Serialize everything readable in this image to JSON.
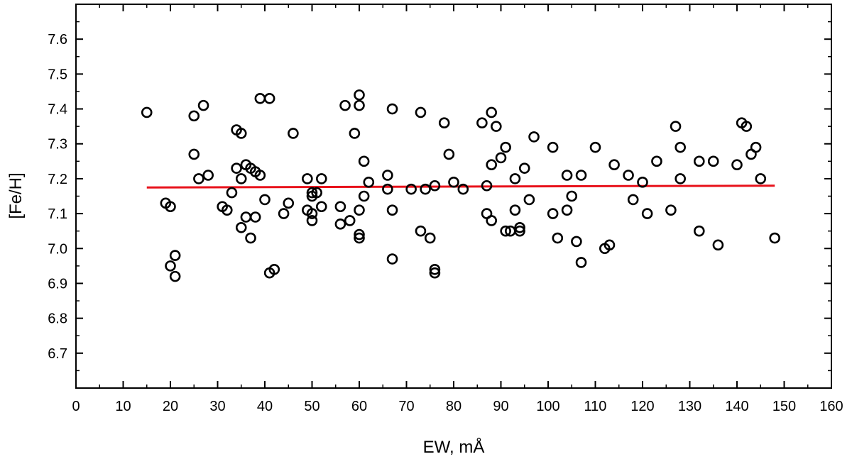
{
  "chart_data": {
    "type": "scatter",
    "title": "",
    "xlabel": "EW,   mÅ",
    "ylabel": "[Fe/H]",
    "xlim": [
      0,
      160
    ],
    "ylim": [
      6.6,
      7.7
    ],
    "x_ticks": [
      0,
      10,
      20,
      30,
      40,
      50,
      60,
      70,
      80,
      90,
      100,
      110,
      120,
      130,
      140,
      150,
      160
    ],
    "y_ticks": [
      6.7,
      6.8,
      6.9,
      7.0,
      7.1,
      7.2,
      7.3,
      7.4,
      7.5,
      7.6
    ],
    "y_tick_labels": [
      "6.7",
      "6.8",
      "6.9",
      "7.0",
      "7.1",
      "7.2",
      "7.3",
      "7.4",
      "7.5",
      "7.6"
    ],
    "grid": false,
    "marker_color": "#000000",
    "fit_line_color": "#e8121b",
    "points": [
      [
        15,
        7.39
      ],
      [
        19,
        7.13
      ],
      [
        20,
        7.12
      ],
      [
        20,
        6.95
      ],
      [
        21,
        6.98
      ],
      [
        21,
        6.92
      ],
      [
        25,
        7.38
      ],
      [
        25,
        7.27
      ],
      [
        26,
        7.2
      ],
      [
        27,
        7.41
      ],
      [
        28,
        7.21
      ],
      [
        31,
        7.12
      ],
      [
        32,
        7.11
      ],
      [
        33,
        7.16
      ],
      [
        34,
        7.34
      ],
      [
        34,
        7.23
      ],
      [
        35,
        7.33
      ],
      [
        35,
        7.2
      ],
      [
        35,
        7.06
      ],
      [
        36,
        7.24
      ],
      [
        36,
        7.09
      ],
      [
        37,
        7.23
      ],
      [
        37,
        7.03
      ],
      [
        38,
        7.22
      ],
      [
        38,
        7.09
      ],
      [
        39,
        7.43
      ],
      [
        39,
        7.21
      ],
      [
        40,
        7.14
      ],
      [
        41,
        7.43
      ],
      [
        41,
        6.93
      ],
      [
        42,
        6.94
      ],
      [
        44,
        7.1
      ],
      [
        45,
        7.13
      ],
      [
        46,
        7.33
      ],
      [
        49,
        7.2
      ],
      [
        49,
        7.11
      ],
      [
        50,
        7.16
      ],
      [
        50,
        7.15
      ],
      [
        50,
        7.1
      ],
      [
        50,
        7.08
      ],
      [
        51,
        7.16
      ],
      [
        52,
        7.2
      ],
      [
        52,
        7.12
      ],
      [
        56,
        7.12
      ],
      [
        56,
        7.07
      ],
      [
        57,
        7.41
      ],
      [
        58,
        7.08
      ],
      [
        59,
        7.33
      ],
      [
        60,
        7.44
      ],
      [
        60,
        7.41
      ],
      [
        60,
        7.11
      ],
      [
        60,
        7.04
      ],
      [
        60,
        7.03
      ],
      [
        61,
        7.25
      ],
      [
        61,
        7.15
      ],
      [
        62,
        7.19
      ],
      [
        66,
        7.21
      ],
      [
        66,
        7.17
      ],
      [
        67,
        7.4
      ],
      [
        67,
        7.11
      ],
      [
        67,
        6.97
      ],
      [
        71,
        7.17
      ],
      [
        73,
        7.39
      ],
      [
        73,
        7.05
      ],
      [
        74,
        7.17
      ],
      [
        75,
        7.03
      ],
      [
        76,
        7.18
      ],
      [
        76,
        6.94
      ],
      [
        76,
        6.93
      ],
      [
        78,
        7.36
      ],
      [
        79,
        7.27
      ],
      [
        80,
        7.19
      ],
      [
        82,
        7.17
      ],
      [
        86,
        7.36
      ],
      [
        87,
        7.18
      ],
      [
        87,
        7.1
      ],
      [
        88,
        7.39
      ],
      [
        88,
        7.24
      ],
      [
        88,
        7.08
      ],
      [
        89,
        7.35
      ],
      [
        90,
        7.26
      ],
      [
        91,
        7.29
      ],
      [
        91,
        7.05
      ],
      [
        92,
        7.05
      ],
      [
        93,
        7.2
      ],
      [
        93,
        7.11
      ],
      [
        94,
        7.06
      ],
      [
        94,
        7.05
      ],
      [
        95,
        7.23
      ],
      [
        96,
        7.14
      ],
      [
        97,
        7.32
      ],
      [
        101,
        7.29
      ],
      [
        101,
        7.1
      ],
      [
        102,
        7.03
      ],
      [
        104,
        7.21
      ],
      [
        104,
        7.11
      ],
      [
        105,
        7.15
      ],
      [
        106,
        7.02
      ],
      [
        107,
        7.21
      ],
      [
        107,
        6.96
      ],
      [
        110,
        7.29
      ],
      [
        112,
        7.0
      ],
      [
        113,
        7.01
      ],
      [
        114,
        7.24
      ],
      [
        117,
        7.21
      ],
      [
        118,
        7.14
      ],
      [
        120,
        7.19
      ],
      [
        121,
        7.1
      ],
      [
        123,
        7.25
      ],
      [
        126,
        7.11
      ],
      [
        127,
        7.35
      ],
      [
        128,
        7.29
      ],
      [
        128,
        7.2
      ],
      [
        132,
        7.25
      ],
      [
        132,
        7.05
      ],
      [
        135,
        7.25
      ],
      [
        136,
        7.01
      ],
      [
        140,
        7.24
      ],
      [
        141,
        7.36
      ],
      [
        142,
        7.35
      ],
      [
        143,
        7.27
      ],
      [
        144,
        7.29
      ],
      [
        145,
        7.2
      ],
      [
        148,
        7.03
      ]
    ],
    "fit_line": {
      "x": [
        15,
        148
      ],
      "y": [
        7.175,
        7.18
      ]
    }
  }
}
